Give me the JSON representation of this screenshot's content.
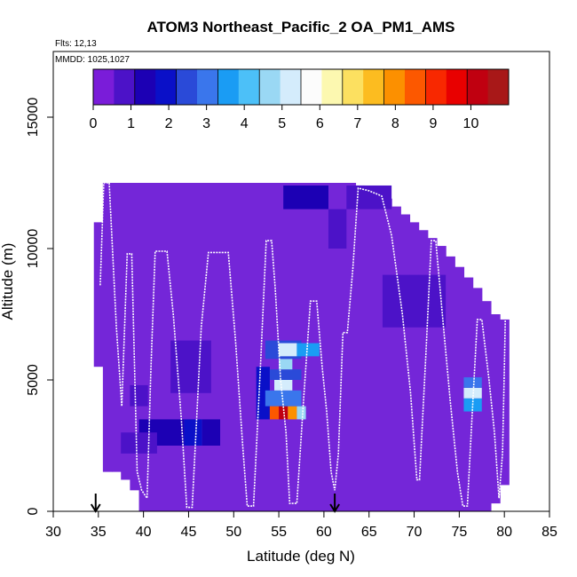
{
  "chart_data": {
    "type": "heatmap",
    "title": "ATOM3 Northeast_Pacific_2 OA_PM1_AMS",
    "flights_label": "Flts: 12,13",
    "mmdd_label": "MMDD: 1025,1027",
    "xlabel": "Latitude (deg N)",
    "ylabel": "Altitude (m)",
    "xlim": [
      30,
      85
    ],
    "ylim": [
      0,
      17500
    ],
    "x_ticks": [
      30,
      35,
      40,
      45,
      50,
      55,
      60,
      65,
      70,
      75,
      80,
      85
    ],
    "y_ticks": [
      0,
      5000,
      10000,
      15000
    ],
    "colorbar": {
      "range": [
        0,
        11
      ],
      "ticks": [
        0,
        1,
        2,
        3,
        4,
        5,
        6,
        7,
        8,
        9,
        10
      ],
      "colors": [
        "#7a1cd9",
        "#4c12c8",
        "#1c00b4",
        "#0a10c8",
        "#2a4ad8",
        "#3a76ec",
        "#1a9cf4",
        "#4cc0f8",
        "#9ad8f4",
        "#d4ecfc",
        "#fcfcfc",
        "#fcf8b0",
        "#fce060",
        "#fcbc20",
        "#fc9000",
        "#fc5800",
        "#f82800",
        "#e80000",
        "#c00010",
        "#a81818"
      ]
    },
    "base_color": "#7426d8",
    "column_extents": [
      [
        34.5,
        35.5,
        11000
      ],
      [
        35.5,
        36.5,
        12500
      ],
      [
        36.5,
        37.5,
        12500
      ],
      [
        37.5,
        38.5,
        12500
      ],
      [
        38.5,
        39.5,
        12500
      ],
      [
        39.5,
        40.5,
        12500
      ],
      [
        40.5,
        60.5,
        12500
      ],
      [
        60.5,
        63.5,
        12500
      ],
      [
        63.5,
        64.5,
        12400
      ],
      [
        64.5,
        65.5,
        12300
      ],
      [
        65.5,
        66.5,
        12100
      ],
      [
        66.5,
        67.5,
        11900
      ],
      [
        67.5,
        68.5,
        11600
      ],
      [
        68.5,
        69.5,
        11300
      ],
      [
        69.5,
        70.5,
        11000
      ],
      [
        70.5,
        71.5,
        10700
      ],
      [
        71.5,
        72.5,
        10400
      ],
      [
        72.5,
        73.5,
        10100
      ],
      [
        73.5,
        74.5,
        9700
      ],
      [
        74.5,
        75.5,
        9300
      ],
      [
        75.5,
        76.5,
        8900
      ],
      [
        76.5,
        77.5,
        8500
      ],
      [
        77.5,
        78.5,
        8000
      ],
      [
        78.5,
        79.5,
        7500
      ],
      [
        79.5,
        80.5,
        7300
      ]
    ],
    "column_bottoms": [
      [
        34.5,
        35.5,
        5500
      ],
      [
        35.5,
        37.5,
        1500
      ],
      [
        37.5,
        38.5,
        1200
      ],
      [
        38.5,
        39.5,
        800
      ],
      [
        39.5,
        40.5,
        0
      ],
      [
        40.5,
        76.5,
        0
      ],
      [
        76.5,
        78.5,
        0
      ],
      [
        78.5,
        79.5,
        300
      ],
      [
        79.5,
        80.5,
        1000
      ]
    ],
    "hotspots": [
      {
        "lat": [
          39.5,
          44.5
        ],
        "alt": [
          2500,
          3500
        ],
        "value": 1.4
      },
      {
        "lat": [
          44.5,
          46.5
        ],
        "alt": [
          2500,
          3500
        ],
        "value": 1.8
      },
      {
        "lat": [
          46.5,
          48.5
        ],
        "alt": [
          2500,
          3500
        ],
        "value": 1.2
      },
      {
        "lat": [
          38.5,
          40.5
        ],
        "alt": [
          4000,
          4800
        ],
        "value": 0.8
      },
      {
        "lat": [
          37.5,
          41.5
        ],
        "alt": [
          2200,
          3000
        ],
        "value": 0.7
      },
      {
        "lat": [
          52.5,
          54.0
        ],
        "alt": [
          3500,
          5500
        ],
        "value": 1.8
      },
      {
        "lat": [
          54.0,
          55.0
        ],
        "alt": [
          3500,
          4000
        ],
        "value": 8.5
      },
      {
        "lat": [
          55.0,
          56.0
        ],
        "alt": [
          3500,
          4000
        ],
        "value": 10.2
      },
      {
        "lat": [
          56.0,
          57.0
        ],
        "alt": [
          3500,
          4000
        ],
        "value": 8.0
      },
      {
        "lat": [
          57.0,
          58.0
        ],
        "alt": [
          3500,
          4000
        ],
        "value": 4.5
      },
      {
        "lat": [
          53.5,
          57.5
        ],
        "alt": [
          4000,
          4600
        ],
        "value": 3.2
      },
      {
        "lat": [
          54.5,
          56.5
        ],
        "alt": [
          4600,
          5000
        ],
        "value": 5.2
      },
      {
        "lat": [
          54.0,
          57.5
        ],
        "alt": [
          5000,
          5400
        ],
        "value": 2.6
      },
      {
        "lat": [
          55.0,
          56.5
        ],
        "alt": [
          5400,
          5800
        ],
        "value": 4.6
      },
      {
        "lat": [
          53.5,
          57.5
        ],
        "alt": [
          5800,
          6500
        ],
        "value": 2.2
      },
      {
        "lat": [
          55.0,
          57.0
        ],
        "alt": [
          5900,
          6400
        ],
        "value": 5.4
      },
      {
        "lat": [
          57.0,
          59.5
        ],
        "alt": [
          5900,
          6400
        ],
        "value": 3.5
      },
      {
        "lat": [
          75.5,
          77.5
        ],
        "alt": [
          3800,
          4300
        ],
        "value": 3.6
      },
      {
        "lat": [
          75.5,
          77.5
        ],
        "alt": [
          4300,
          4700
        ],
        "value": 5.0
      },
      {
        "lat": [
          75.5,
          77.5
        ],
        "alt": [
          4700,
          5100
        ],
        "value": 3.2
      },
      {
        "lat": [
          62.5,
          67.5
        ],
        "alt": [
          11500,
          12400
        ],
        "value": 1.0
      },
      {
        "lat": [
          55.5,
          60.5
        ],
        "alt": [
          11500,
          12400
        ],
        "value": 1.1
      },
      {
        "lat": [
          60.5,
          62.5
        ],
        "alt": [
          10000,
          11500
        ],
        "value": 0.9
      },
      {
        "lat": [
          66.5,
          73.5
        ],
        "alt": [
          7000,
          9000
        ],
        "value": 0.8
      },
      {
        "lat": [
          43.0,
          47.5
        ],
        "alt": [
          4500,
          6500
        ],
        "value": 0.7
      }
    ],
    "flight_track": [
      [
        35.2,
        8600
      ],
      [
        35.6,
        12500
      ],
      [
        36.2,
        12500
      ],
      [
        37.0,
        7000
      ],
      [
        37.6,
        4000
      ],
      [
        38.2,
        9800
      ],
      [
        38.7,
        9800
      ],
      [
        39.3,
        1500
      ],
      [
        39.8,
        800
      ],
      [
        40.4,
        500
      ],
      [
        40.8,
        5200
      ],
      [
        41.3,
        9900
      ],
      [
        42.6,
        9900
      ],
      [
        43.3,
        7500
      ],
      [
        44.2,
        3500
      ],
      [
        44.8,
        150
      ],
      [
        45.4,
        150
      ],
      [
        46.4,
        7000
      ],
      [
        47.2,
        9850
      ],
      [
        49.4,
        9850
      ],
      [
        50.2,
        6500
      ],
      [
        51.0,
        2500
      ],
      [
        51.5,
        200
      ],
      [
        52.2,
        200
      ],
      [
        53.0,
        5800
      ],
      [
        53.6,
        10300
      ],
      [
        54.2,
        10300
      ],
      [
        54.6,
        8500
      ],
      [
        55.2,
        5000
      ],
      [
        55.8,
        3000
      ],
      [
        56.2,
        300
      ],
      [
        57.0,
        300
      ],
      [
        57.8,
        4500
      ],
      [
        58.5,
        8000
      ],
      [
        59.2,
        8000
      ],
      [
        59.8,
        5500
      ],
      [
        60.3,
        3800
      ],
      [
        60.8,
        1500
      ],
      [
        61.2,
        800
      ],
      [
        61.6,
        2200
      ],
      [
        62.1,
        6800
      ],
      [
        62.6,
        6800
      ],
      [
        63.2,
        9200
      ],
      [
        63.8,
        12300
      ],
      [
        65.0,
        12200
      ],
      [
        66.4,
        12000
      ],
      [
        67.5,
        10500
      ],
      [
        68.7,
        7500
      ],
      [
        69.6,
        4500
      ],
      [
        70.3,
        1200
      ],
      [
        70.6,
        1200
      ],
      [
        71.3,
        6000
      ],
      [
        71.9,
        10300
      ],
      [
        72.4,
        10300
      ],
      [
        73.2,
        7200
      ],
      [
        74.0,
        4200
      ],
      [
        74.8,
        1500
      ],
      [
        75.4,
        200
      ],
      [
        75.9,
        200
      ],
      [
        76.4,
        3500
      ],
      [
        77.0,
        7300
      ],
      [
        77.5,
        7300
      ],
      [
        78.3,
        5000
      ],
      [
        78.9,
        3000
      ],
      [
        79.4,
        500
      ],
      [
        79.8,
        2200
      ],
      [
        80.0,
        5500
      ],
      [
        80.1,
        7300
      ]
    ],
    "arrow_markers": [
      34.7,
      61.2
    ]
  }
}
